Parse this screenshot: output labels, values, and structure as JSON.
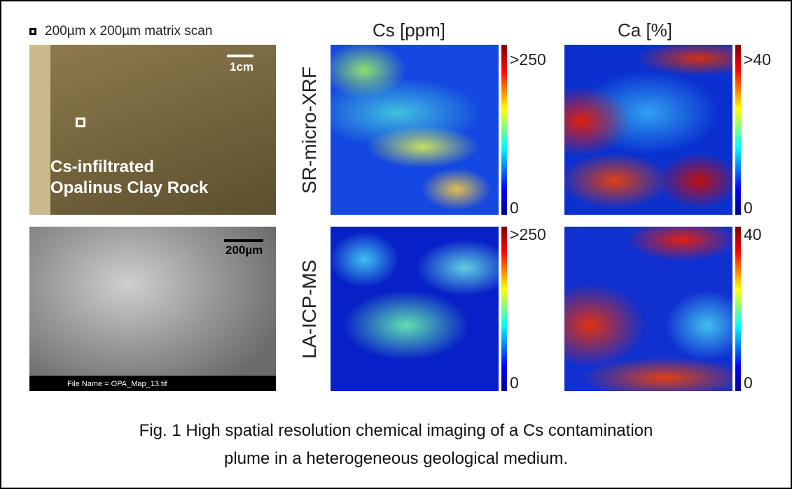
{
  "legend": {
    "marker_text": "200µm x 200µm matrix scan"
  },
  "columns": [
    "Cs [ppm]",
    "Ca [%]"
  ],
  "rows": [
    "SR-micro-XRF",
    "LA-ICP-MS"
  ],
  "photo": {
    "scale": "1cm",
    "label_lines": [
      "Cs-infiltrated",
      "Opalinus Clay Rock"
    ]
  },
  "sem": {
    "scale": "200µm",
    "file_name": "File Name = OPA_Map_13.tif"
  },
  "colorbars": [
    {
      "max": ">250",
      "min": "0"
    },
    {
      "max": ">40",
      "min": "0"
    },
    {
      "max": ">250",
      "min": "0"
    },
    {
      "max": "40",
      "min": "0"
    }
  ],
  "caption": [
    "Fig. 1 High spatial resolution chemical imaging of a Cs contamination",
    "plume in a heterogeneous geological medium."
  ]
}
